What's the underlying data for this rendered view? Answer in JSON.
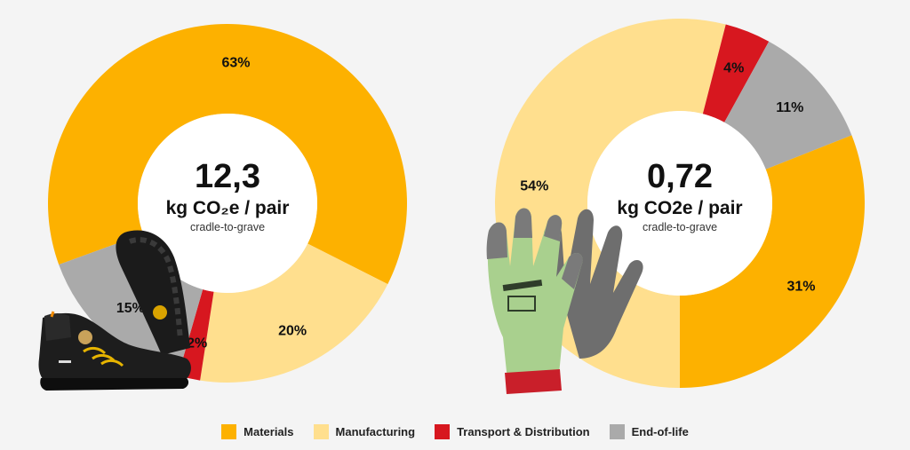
{
  "colors": {
    "materials": "#FDB100",
    "manufacturing": "#FFDF8E",
    "transport": "#D7171F",
    "end_of_life": "#AAAAAA"
  },
  "legend": [
    {
      "label": "Materials",
      "color": "#FDB100"
    },
    {
      "label": "Manufacturing",
      "color": "#FFDF8E"
    },
    {
      "label": "Transport & Distribution",
      "color": "#D7171F"
    },
    {
      "label": "End-of-life",
      "color": "#AAAAAA"
    }
  ],
  "chart_data": [
    {
      "type": "pie",
      "donut": true,
      "center_value": "12,3",
      "center_unit": "kg CO₂e / pair",
      "center_sub": "cradle-to-grave",
      "slices": [
        {
          "name": "Materials",
          "value": 63,
          "label": "63%"
        },
        {
          "name": "Manufacturing",
          "value": 20,
          "label": "20%"
        },
        {
          "name": "Transport & Distribution",
          "value": 2,
          "label": "2%"
        },
        {
          "name": "End-of-life",
          "value": 15,
          "label": "15%"
        }
      ],
      "illustration": "safety-shoe"
    },
    {
      "type": "pie",
      "donut": true,
      "center_value": "0,72",
      "center_unit": "kg CO2e / pair",
      "center_sub": "cradle-to-grave",
      "slices": [
        {
          "name": "Manufacturing",
          "value": 54,
          "label": "54%"
        },
        {
          "name": "Transport & Distribution",
          "value": 4,
          "label": "4%"
        },
        {
          "name": "End-of-life",
          "value": 11,
          "label": "11%"
        },
        {
          "name": "Materials",
          "value": 31,
          "label": "31%"
        }
      ],
      "illustration": "work-gloves"
    }
  ]
}
